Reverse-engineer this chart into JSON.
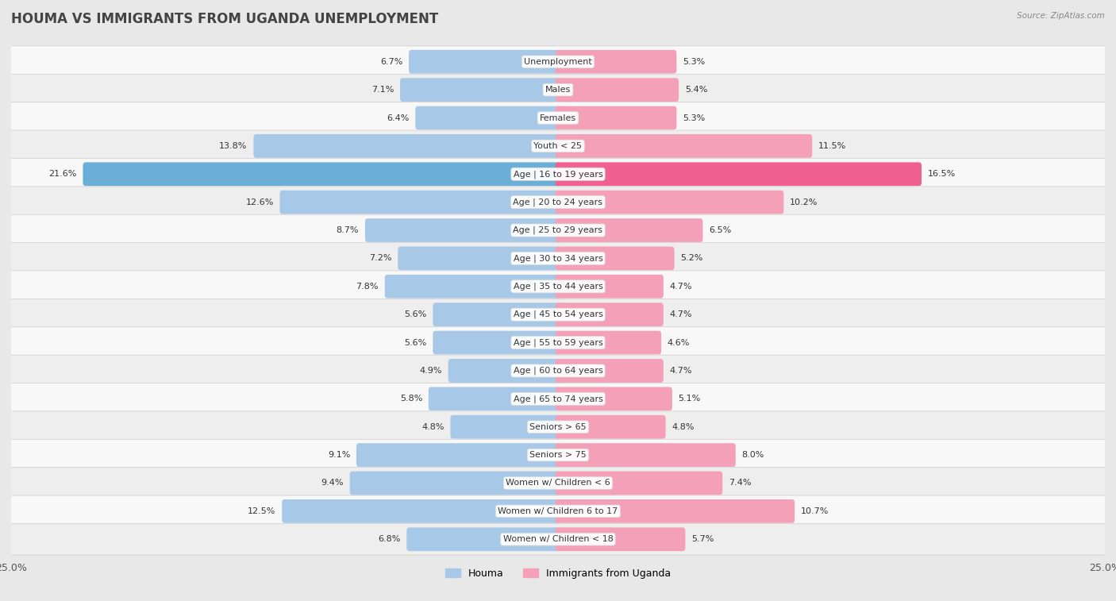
{
  "title": "HOUMA VS IMMIGRANTS FROM UGANDA UNEMPLOYMENT",
  "source": "Source: ZipAtlas.com",
  "categories": [
    "Unemployment",
    "Males",
    "Females",
    "Youth < 25",
    "Age | 16 to 19 years",
    "Age | 20 to 24 years",
    "Age | 25 to 29 years",
    "Age | 30 to 34 years",
    "Age | 35 to 44 years",
    "Age | 45 to 54 years",
    "Age | 55 to 59 years",
    "Age | 60 to 64 years",
    "Age | 65 to 74 years",
    "Seniors > 65",
    "Seniors > 75",
    "Women w/ Children < 6",
    "Women w/ Children 6 to 17",
    "Women w/ Children < 18"
  ],
  "houma_values": [
    6.7,
    7.1,
    6.4,
    13.8,
    21.6,
    12.6,
    8.7,
    7.2,
    7.8,
    5.6,
    5.6,
    4.9,
    5.8,
    4.8,
    9.1,
    9.4,
    12.5,
    6.8
  ],
  "uganda_values": [
    5.3,
    5.4,
    5.3,
    11.5,
    16.5,
    10.2,
    6.5,
    5.2,
    4.7,
    4.7,
    4.6,
    4.7,
    5.1,
    4.8,
    8.0,
    7.4,
    10.7,
    5.7
  ],
  "houma_color": "#a8c8e8",
  "uganda_color": "#f4a0b8",
  "houma_highlight_color": "#6baed6",
  "uganda_highlight_color": "#f06090",
  "axis_limit": 25.0,
  "bar_height": 0.6,
  "background_color": "#e8e8e8",
  "row_color_even": "#f8f8f8",
  "row_color_odd": "#eeeeee",
  "title_fontsize": 12,
  "label_fontsize": 8,
  "value_fontsize": 8,
  "legend_fontsize": 9,
  "title_color": "#444444",
  "source_color": "#888888",
  "value_color": "#333333",
  "label_color": "#333333"
}
